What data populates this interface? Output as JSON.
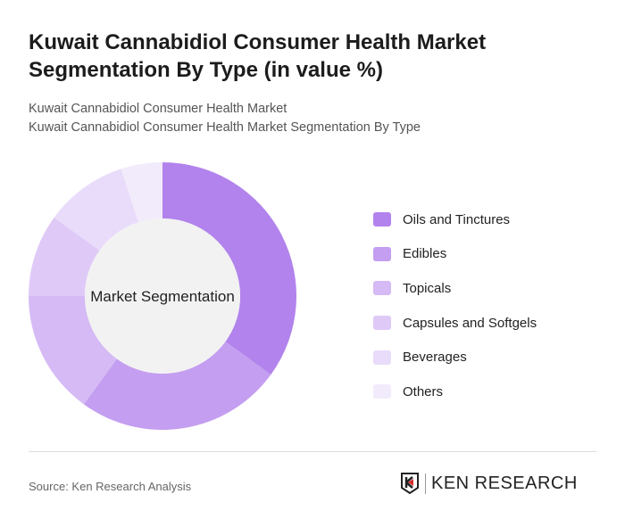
{
  "title": "Kuwait Cannabidiol Consumer Health Market Segmentation By Type (in value %)",
  "subtitle1": "Kuwait Cannabidiol Consumer Health Market",
  "subtitle2": "Kuwait Cannabidiol Consumer Health Market Segmentation By Type",
  "source": "Source: Ken Research Analysis",
  "logo_text": "KEN RESEARCH",
  "chart_data": {
    "type": "pie",
    "donut": true,
    "center_label": "Market Segmentation",
    "legend_position": "right",
    "categories": [
      "Oils and Tinctures",
      "Edibles",
      "Topicals",
      "Capsules and Softgels",
      "Beverages",
      "Others"
    ],
    "values": [
      35,
      25,
      15,
      10,
      10,
      5
    ],
    "colors": [
      "#b283ec",
      "#c49ef0",
      "#d5baf5",
      "#dfcaf7",
      "#e9dcfa",
      "#f2ebfc"
    ]
  }
}
